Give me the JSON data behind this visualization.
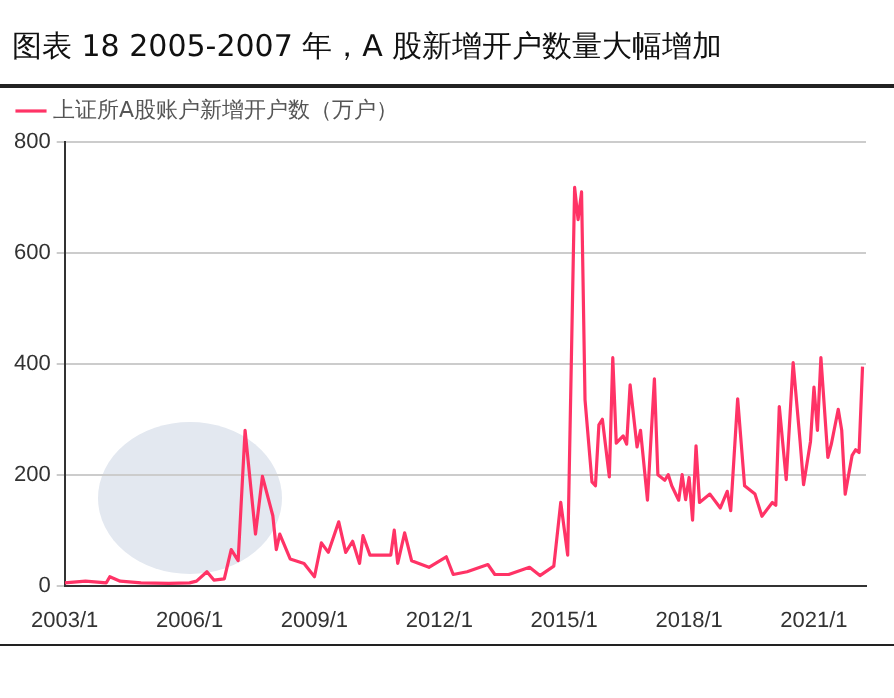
{
  "chart_data": {
    "type": "line",
    "title": "图表 18 2005-2007 年，A 股新增开户数量大幅增加",
    "x": [
      "2003-01",
      "2003-07",
      "2004-01",
      "2004-02",
      "2004-05",
      "2004-11",
      "2005-07",
      "2006-01",
      "2006-03",
      "2006-06",
      "2006-08",
      "2006-11",
      "2007-01",
      "2007-03",
      "2007-05",
      "2007-08",
      "2007-10",
      "2008-01",
      "2008-02",
      "2008-03",
      "2008-06",
      "2008-10",
      "2009-01",
      "2009-03",
      "2009-05",
      "2009-08",
      "2009-10",
      "2009-12",
      "2010-02",
      "2010-03",
      "2010-05",
      "2010-11",
      "2010-12",
      "2011-01",
      "2011-03",
      "2011-05",
      "2011-10",
      "2012-03",
      "2012-05",
      "2012-09",
      "2013-03",
      "2013-05",
      "2013-09",
      "2014-03",
      "2014-06",
      "2014-10",
      "2014-12",
      "2015-02",
      "2015-04",
      "2015-05",
      "2015-06",
      "2015-07",
      "2015-09",
      "2015-10",
      "2015-11",
      "2015-12",
      "2016-02",
      "2016-03",
      "2016-04",
      "2016-06",
      "2016-07",
      "2016-08",
      "2016-10",
      "2016-11",
      "2017-01",
      "2017-03",
      "2017-04",
      "2017-06",
      "2017-07",
      "2017-08",
      "2017-10",
      "2017-11",
      "2017-12",
      "2018-01",
      "2018-02",
      "2018-03",
      "2018-04",
      "2018-07",
      "2018-10",
      "2018-12",
      "2019-01",
      "2019-03",
      "2019-05",
      "2019-08",
      "2019-10",
      "2020-01",
      "2020-02",
      "2020-03",
      "2020-05",
      "2020-07",
      "2020-09",
      "2020-10",
      "2020-12",
      "2021-01",
      "2021-02",
      "2021-03",
      "2021-05",
      "2021-06",
      "2021-08",
      "2021-09",
      "2021-10",
      "2021-12",
      "2022-01",
      "2022-02",
      "2022-03"
    ],
    "series": [
      {
        "name": "上证所A股账户新增开户数（万户）",
        "color": "#ff3366",
        "values": [
          5,
          8,
          5,
          16,
          8,
          5,
          4,
          5,
          8,
          25,
          10,
          12,
          65,
          45,
          280,
          93,
          197,
          126,
          65,
          93,
          48,
          40,
          16,
          77,
          60,
          115,
          60,
          80,
          40,
          90,
          55,
          55,
          100,
          40,
          95,
          45,
          33,
          52,
          20,
          25,
          38,
          20,
          20,
          33,
          18,
          35,
          150,
          55,
          718,
          660,
          710,
          335,
          187,
          180,
          290,
          300,
          196,
          411,
          257,
          270,
          255,
          362,
          250,
          280,
          154,
          373,
          200,
          190,
          200,
          180,
          154,
          200,
          155,
          195,
          118,
          252,
          150,
          165,
          140,
          170,
          135,
          337,
          180,
          165,
          125,
          150,
          145,
          323,
          191,
          402,
          260,
          182,
          260,
          358,
          280,
          411,
          231,
          255,
          318,
          280,
          165,
          235,
          245,
          240,
          395
        ]
      }
    ],
    "xlim": [
      "2003-01",
      "2022-04"
    ],
    "xticks": [
      {
        "value": "2003-01",
        "label": "2003/1"
      },
      {
        "value": "2006-01",
        "label": "2006/1"
      },
      {
        "value": "2009-01",
        "label": "2009/1"
      },
      {
        "value": "2012-01",
        "label": "2012/1"
      },
      {
        "value": "2015-01",
        "label": "2015/1"
      },
      {
        "value": "2018-01",
        "label": "2018/1"
      },
      {
        "value": "2021-01",
        "label": "2021/1"
      }
    ],
    "ylim": [
      0,
      800
    ],
    "yticks": [
      0,
      200,
      400,
      600,
      800
    ],
    "grid": "y",
    "legend": "top left",
    "marker": "none",
    "line_style": "solid"
  }
}
